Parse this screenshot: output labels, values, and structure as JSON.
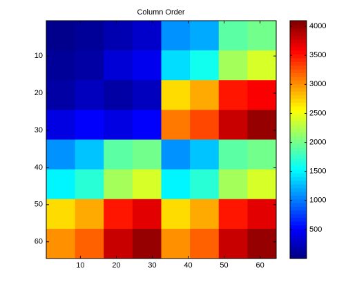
{
  "chart_data": {
    "type": "heatmap",
    "title": "Column Order",
    "xedges": [
      0.5,
      8.5,
      16.5,
      24.5,
      32.5,
      40.5,
      48.5,
      56.5,
      64.5
    ],
    "yedges": [
      0.5,
      8.5,
      16.5,
      24.5,
      32.5,
      40.5,
      48.5,
      56.5,
      64.5
    ],
    "values": [
      [
        50,
        100,
        200,
        300,
        1100,
        1200,
        1900,
        2000
      ],
      [
        100,
        150,
        350,
        450,
        1400,
        1600,
        2200,
        2400
      ],
      [
        150,
        250,
        150,
        250,
        2700,
        2900,
        3500,
        3600
      ],
      [
        400,
        500,
        400,
        500,
        3100,
        3300,
        3800,
        4000
      ],
      [
        1100,
        1300,
        1900,
        2000,
        1100,
        1300,
        1900,
        2000
      ],
      [
        1500,
        1700,
        2200,
        2400,
        1500,
        1700,
        2200,
        2400
      ],
      [
        2700,
        2900,
        3500,
        3700,
        2700,
        2900,
        3500,
        3700
      ],
      [
        3000,
        3200,
        3800,
        4000,
        3000,
        3200,
        3800,
        4000
      ]
    ],
    "xlim": [
      0.5,
      64.5
    ],
    "xticks": [
      10,
      20,
      30,
      40,
      50,
      60
    ],
    "ylim": [
      0.5,
      64.5
    ],
    "y_direction": "reverse",
    "yticks": [
      10,
      20,
      30,
      40,
      50,
      60
    ],
    "colormap": "jet",
    "clim": [
      1,
      4096
    ],
    "colorbar_ticks": [
      500,
      1000,
      1500,
      2000,
      2500,
      3000,
      3500,
      4000
    ]
  }
}
